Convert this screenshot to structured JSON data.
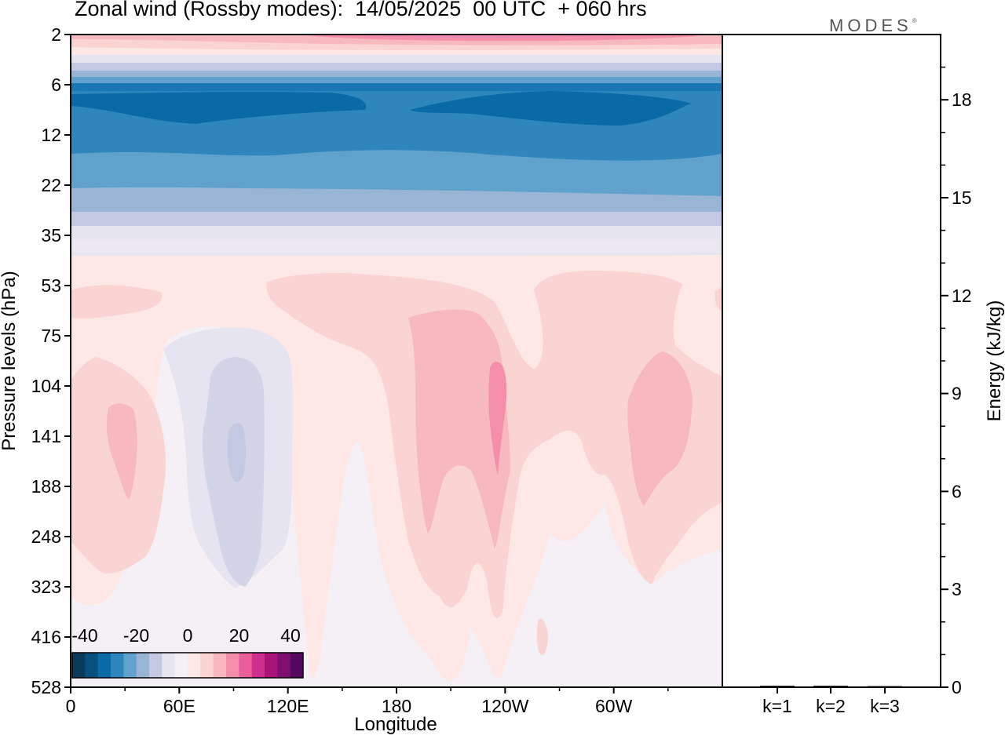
{
  "header": {
    "title": "Zonal wind (Rossby modes):  14/05/2025  00 UTC  + 060 hrs",
    "brand": "MODES",
    "brand_mark": "®"
  },
  "chart_data": [
    {
      "type": "heatmap",
      "xlabel": "Longitude",
      "ylabel": "Pressure levels (hPa)",
      "x_tick_labels": [
        "0",
        "60E",
        "120E",
        "180",
        "120W",
        "60W"
      ],
      "y_tick_labels": [
        "2",
        "6",
        "12",
        "22",
        "35",
        "53",
        "75",
        "104",
        "141",
        "188",
        "248",
        "323",
        "416",
        "528"
      ],
      "y_axis": "pressure, log-like level spacing, top = 2 hPa, bottom = 528 hPa",
      "x_range": [
        "0",
        "360 (periodic)"
      ],
      "colorbar": {
        "tick_labels": [
          "-40",
          "-20",
          "0",
          "20",
          "40"
        ],
        "range": [
          -50,
          50
        ],
        "interval": 5,
        "colors": [
          "#0b3a5c",
          "#08517f",
          "#0a6aa8",
          "#2f86bd",
          "#61a2cd",
          "#98b5d6",
          "#c3c9e2",
          "#e6e4f0",
          "#f5eff6",
          "#fde8e6",
          "#fad3d3",
          "#f7b8bf",
          "#f48ea9",
          "#ea5e9c",
          "#cf2f8c",
          "#a9147b",
          "#7e0f6e",
          "#54075e"
        ]
      },
      "rows": [
        {
          "level": "2",
          "description": "pink maximum ~15-25 m/s near 180"
        },
        {
          "level": "3-4",
          "description": "weak positive 0-10 m/s"
        },
        {
          "level": "5-6",
          "description": "transition to easterlies"
        },
        {
          "level": "8",
          "description": "easterly jet, -30 to -35 m/s cores near 80E and 80W"
        },
        {
          "level": "12",
          "description": "-25 to -30 m/s"
        },
        {
          "level": "16",
          "description": "-20 to -25 m/s"
        },
        {
          "level": "22",
          "description": "-15 to -20 m/s"
        },
        {
          "level": "28",
          "description": "-10 to -15 m/s"
        },
        {
          "level": "35",
          "description": "-5 to 0 m/s"
        },
        {
          "level": "53-528",
          "description": "weak westerlies 0-15 m/s; maxima ~15-20 m/s near 120W 104-141 hPa"
        }
      ]
    },
    {
      "type": "bar",
      "ylabel": "Energy (kJ/kg)",
      "categories": [
        "k=1",
        "k=2",
        "k=3"
      ],
      "values": [
        0.02,
        0.02,
        0.01
      ],
      "ylim": [
        0,
        20
      ],
      "y_tick_labels": [
        "0",
        "3",
        "6",
        "9",
        "12",
        "15",
        "18"
      ]
    }
  ]
}
